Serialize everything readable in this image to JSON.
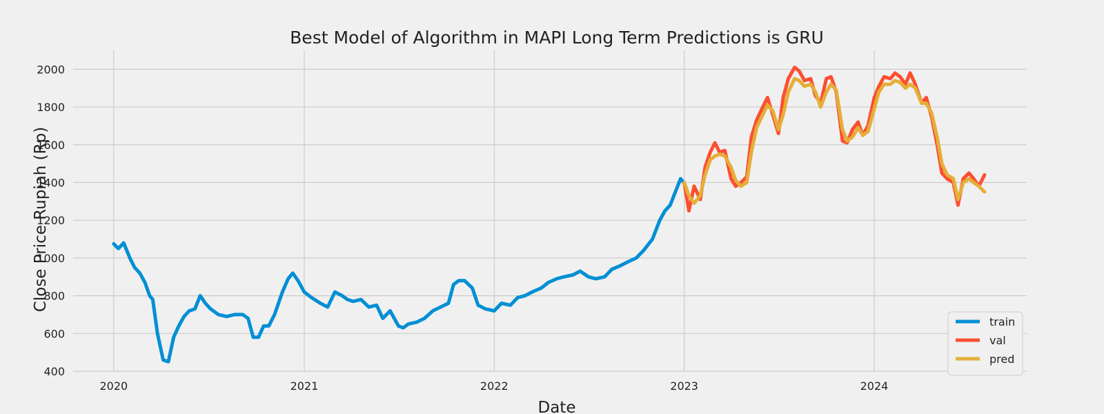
{
  "chart_data": {
    "type": "line",
    "title": "Best Model of Algorithm in MAPI Long Term Predictions is GRU",
    "xlabel": "Date",
    "ylabel": "Close Price Rupiah (Rp)",
    "xlim": [
      "2019-10-15",
      "2024-10-20"
    ],
    "ylim": [
      400,
      2100
    ],
    "x_ticks": [
      "2020",
      "2021",
      "2022",
      "2023",
      "2024"
    ],
    "y_ticks": [
      400,
      600,
      800,
      1000,
      1200,
      1400,
      1600,
      1800,
      2000
    ],
    "grid": true,
    "legend_position": "lower-right",
    "colors": {
      "background": "#f0f0f0",
      "grid": "#cbcbcb",
      "train": "#008fd5",
      "val": "#fc4f30",
      "pred": "#e5ae38"
    },
    "series": [
      {
        "name": "train",
        "x": [
          "2020-01-01",
          "2020-01-10",
          "2020-01-20",
          "2020-02-01",
          "2020-02-10",
          "2020-02-20",
          "2020-03-01",
          "2020-03-10",
          "2020-03-16",
          "2020-03-20",
          "2020-03-25",
          "2020-04-05",
          "2020-04-15",
          "2020-04-25",
          "2020-05-05",
          "2020-05-15",
          "2020-05-25",
          "2020-06-05",
          "2020-06-15",
          "2020-06-25",
          "2020-07-05",
          "2020-07-20",
          "2020-08-05",
          "2020-08-20",
          "2020-09-05",
          "2020-09-15",
          "2020-09-25",
          "2020-10-05",
          "2020-10-15",
          "2020-10-25",
          "2020-11-05",
          "2020-11-20",
          "2020-12-01",
          "2020-12-10",
          "2020-12-20",
          "2021-01-01",
          "2021-01-15",
          "2021-02-01",
          "2021-02-15",
          "2021-03-01",
          "2021-03-15",
          "2021-03-25",
          "2021-04-05",
          "2021-04-20",
          "2021-05-05",
          "2021-05-20",
          "2021-06-01",
          "2021-06-15",
          "2021-07-01",
          "2021-07-10",
          "2021-07-20",
          "2021-08-05",
          "2021-08-20",
          "2021-09-05",
          "2021-09-20",
          "2021-10-05",
          "2021-10-15",
          "2021-10-25",
          "2021-11-05",
          "2021-11-20",
          "2021-12-01",
          "2021-12-15",
          "2022-01-01",
          "2022-01-15",
          "2022-02-01",
          "2022-02-15",
          "2022-03-01",
          "2022-03-15",
          "2022-04-01",
          "2022-04-15",
          "2022-05-01",
          "2022-05-15",
          "2022-06-01",
          "2022-06-15",
          "2022-07-01",
          "2022-07-15",
          "2022-08-01",
          "2022-08-15",
          "2022-09-01",
          "2022-09-15",
          "2022-10-01",
          "2022-10-15",
          "2022-11-01",
          "2022-11-15",
          "2022-11-25",
          "2022-12-05",
          "2022-12-15",
          "2022-12-25",
          "2022-12-31"
        ],
        "values": [
          1075,
          1050,
          1080,
          1000,
          950,
          920,
          870,
          800,
          780,
          700,
          600,
          460,
          450,
          580,
          640,
          690,
          720,
          730,
          800,
          760,
          730,
          700,
          690,
          700,
          700,
          680,
          580,
          580,
          640,
          640,
          700,
          820,
          890,
          920,
          880,
          820,
          790,
          760,
          740,
          820,
          800,
          780,
          770,
          780,
          740,
          750,
          680,
          720,
          640,
          630,
          650,
          660,
          680,
          720,
          740,
          760,
          860,
          880,
          880,
          840,
          750,
          730,
          720,
          760,
          750,
          790,
          800,
          820,
          840,
          870,
          890,
          900,
          910,
          930,
          900,
          890,
          900,
          940,
          960,
          980,
          1000,
          1040,
          1100,
          1200,
          1250,
          1280,
          1350,
          1420,
          1400
        ]
      },
      {
        "name": "val",
        "x": [
          "2023-01-01",
          "2023-01-10",
          "2023-01-20",
          "2023-02-01",
          "2023-02-10",
          "2023-02-20",
          "2023-03-01",
          "2023-03-10",
          "2023-03-20",
          "2023-04-01",
          "2023-04-10",
          "2023-04-20",
          "2023-05-01",
          "2023-05-10",
          "2023-05-20",
          "2023-06-01",
          "2023-06-10",
          "2023-06-20",
          "2023-07-01",
          "2023-07-10",
          "2023-07-20",
          "2023-08-01",
          "2023-08-10",
          "2023-08-20",
          "2023-09-01",
          "2023-09-10",
          "2023-09-20",
          "2023-10-01",
          "2023-10-10",
          "2023-10-20",
          "2023-11-01",
          "2023-11-10",
          "2023-11-20",
          "2023-12-01",
          "2023-12-10",
          "2023-12-20",
          "2024-01-01",
          "2024-01-10",
          "2024-01-20",
          "2024-02-01",
          "2024-02-10",
          "2024-02-20",
          "2024-03-01",
          "2024-03-10",
          "2024-03-20",
          "2024-04-01",
          "2024-04-10",
          "2024-04-20",
          "2024-05-01",
          "2024-05-10",
          "2024-05-20",
          "2024-06-01",
          "2024-06-10",
          "2024-06-20",
          "2024-07-01",
          "2024-07-10",
          "2024-07-20",
          "2024-07-31"
        ],
        "values": [
          1400,
          1250,
          1380,
          1310,
          1480,
          1560,
          1610,
          1560,
          1570,
          1420,
          1380,
          1400,
          1430,
          1640,
          1730,
          1800,
          1850,
          1760,
          1660,
          1850,
          1950,
          2010,
          1990,
          1940,
          1950,
          1860,
          1820,
          1950,
          1960,
          1880,
          1620,
          1610,
          1680,
          1720,
          1650,
          1700,
          1850,
          1910,
          1960,
          1950,
          1980,
          1960,
          1920,
          1980,
          1920,
          1820,
          1850,
          1750,
          1600,
          1450,
          1420,
          1400,
          1280,
          1420,
          1450,
          1420,
          1380,
          1440
        ]
      },
      {
        "name": "pred",
        "x": [
          "2023-01-01",
          "2023-01-10",
          "2023-01-20",
          "2023-02-01",
          "2023-02-10",
          "2023-02-20",
          "2023-03-01",
          "2023-03-10",
          "2023-03-20",
          "2023-04-01",
          "2023-04-10",
          "2023-04-20",
          "2023-05-01",
          "2023-05-10",
          "2023-05-20",
          "2023-06-01",
          "2023-06-10",
          "2023-06-20",
          "2023-07-01",
          "2023-07-10",
          "2023-07-20",
          "2023-08-01",
          "2023-08-10",
          "2023-08-20",
          "2023-09-01",
          "2023-09-10",
          "2023-09-20",
          "2023-10-01",
          "2023-10-10",
          "2023-10-20",
          "2023-11-01",
          "2023-11-10",
          "2023-11-20",
          "2023-12-01",
          "2023-12-10",
          "2023-12-20",
          "2024-01-01",
          "2024-01-10",
          "2024-01-20",
          "2024-02-01",
          "2024-02-10",
          "2024-02-20",
          "2024-03-01",
          "2024-03-10",
          "2024-03-20",
          "2024-04-01",
          "2024-04-10",
          "2024-04-20",
          "2024-05-01",
          "2024-05-10",
          "2024-05-20",
          "2024-06-01",
          "2024-06-10",
          "2024-06-20",
          "2024-07-01",
          "2024-07-10",
          "2024-07-20",
          "2024-07-31"
        ],
        "values": [
          1400,
          1330,
          1290,
          1330,
          1440,
          1520,
          1540,
          1550,
          1540,
          1480,
          1410,
          1380,
          1400,
          1560,
          1690,
          1760,
          1810,
          1780,
          1680,
          1760,
          1880,
          1950,
          1940,
          1910,
          1920,
          1880,
          1800,
          1880,
          1920,
          1890,
          1680,
          1620,
          1640,
          1690,
          1650,
          1670,
          1790,
          1880,
          1920,
          1920,
          1940,
          1930,
          1900,
          1920,
          1900,
          1820,
          1820,
          1770,
          1640,
          1500,
          1440,
          1420,
          1310,
          1400,
          1420,
          1400,
          1380,
          1350
        ]
      }
    ]
  }
}
